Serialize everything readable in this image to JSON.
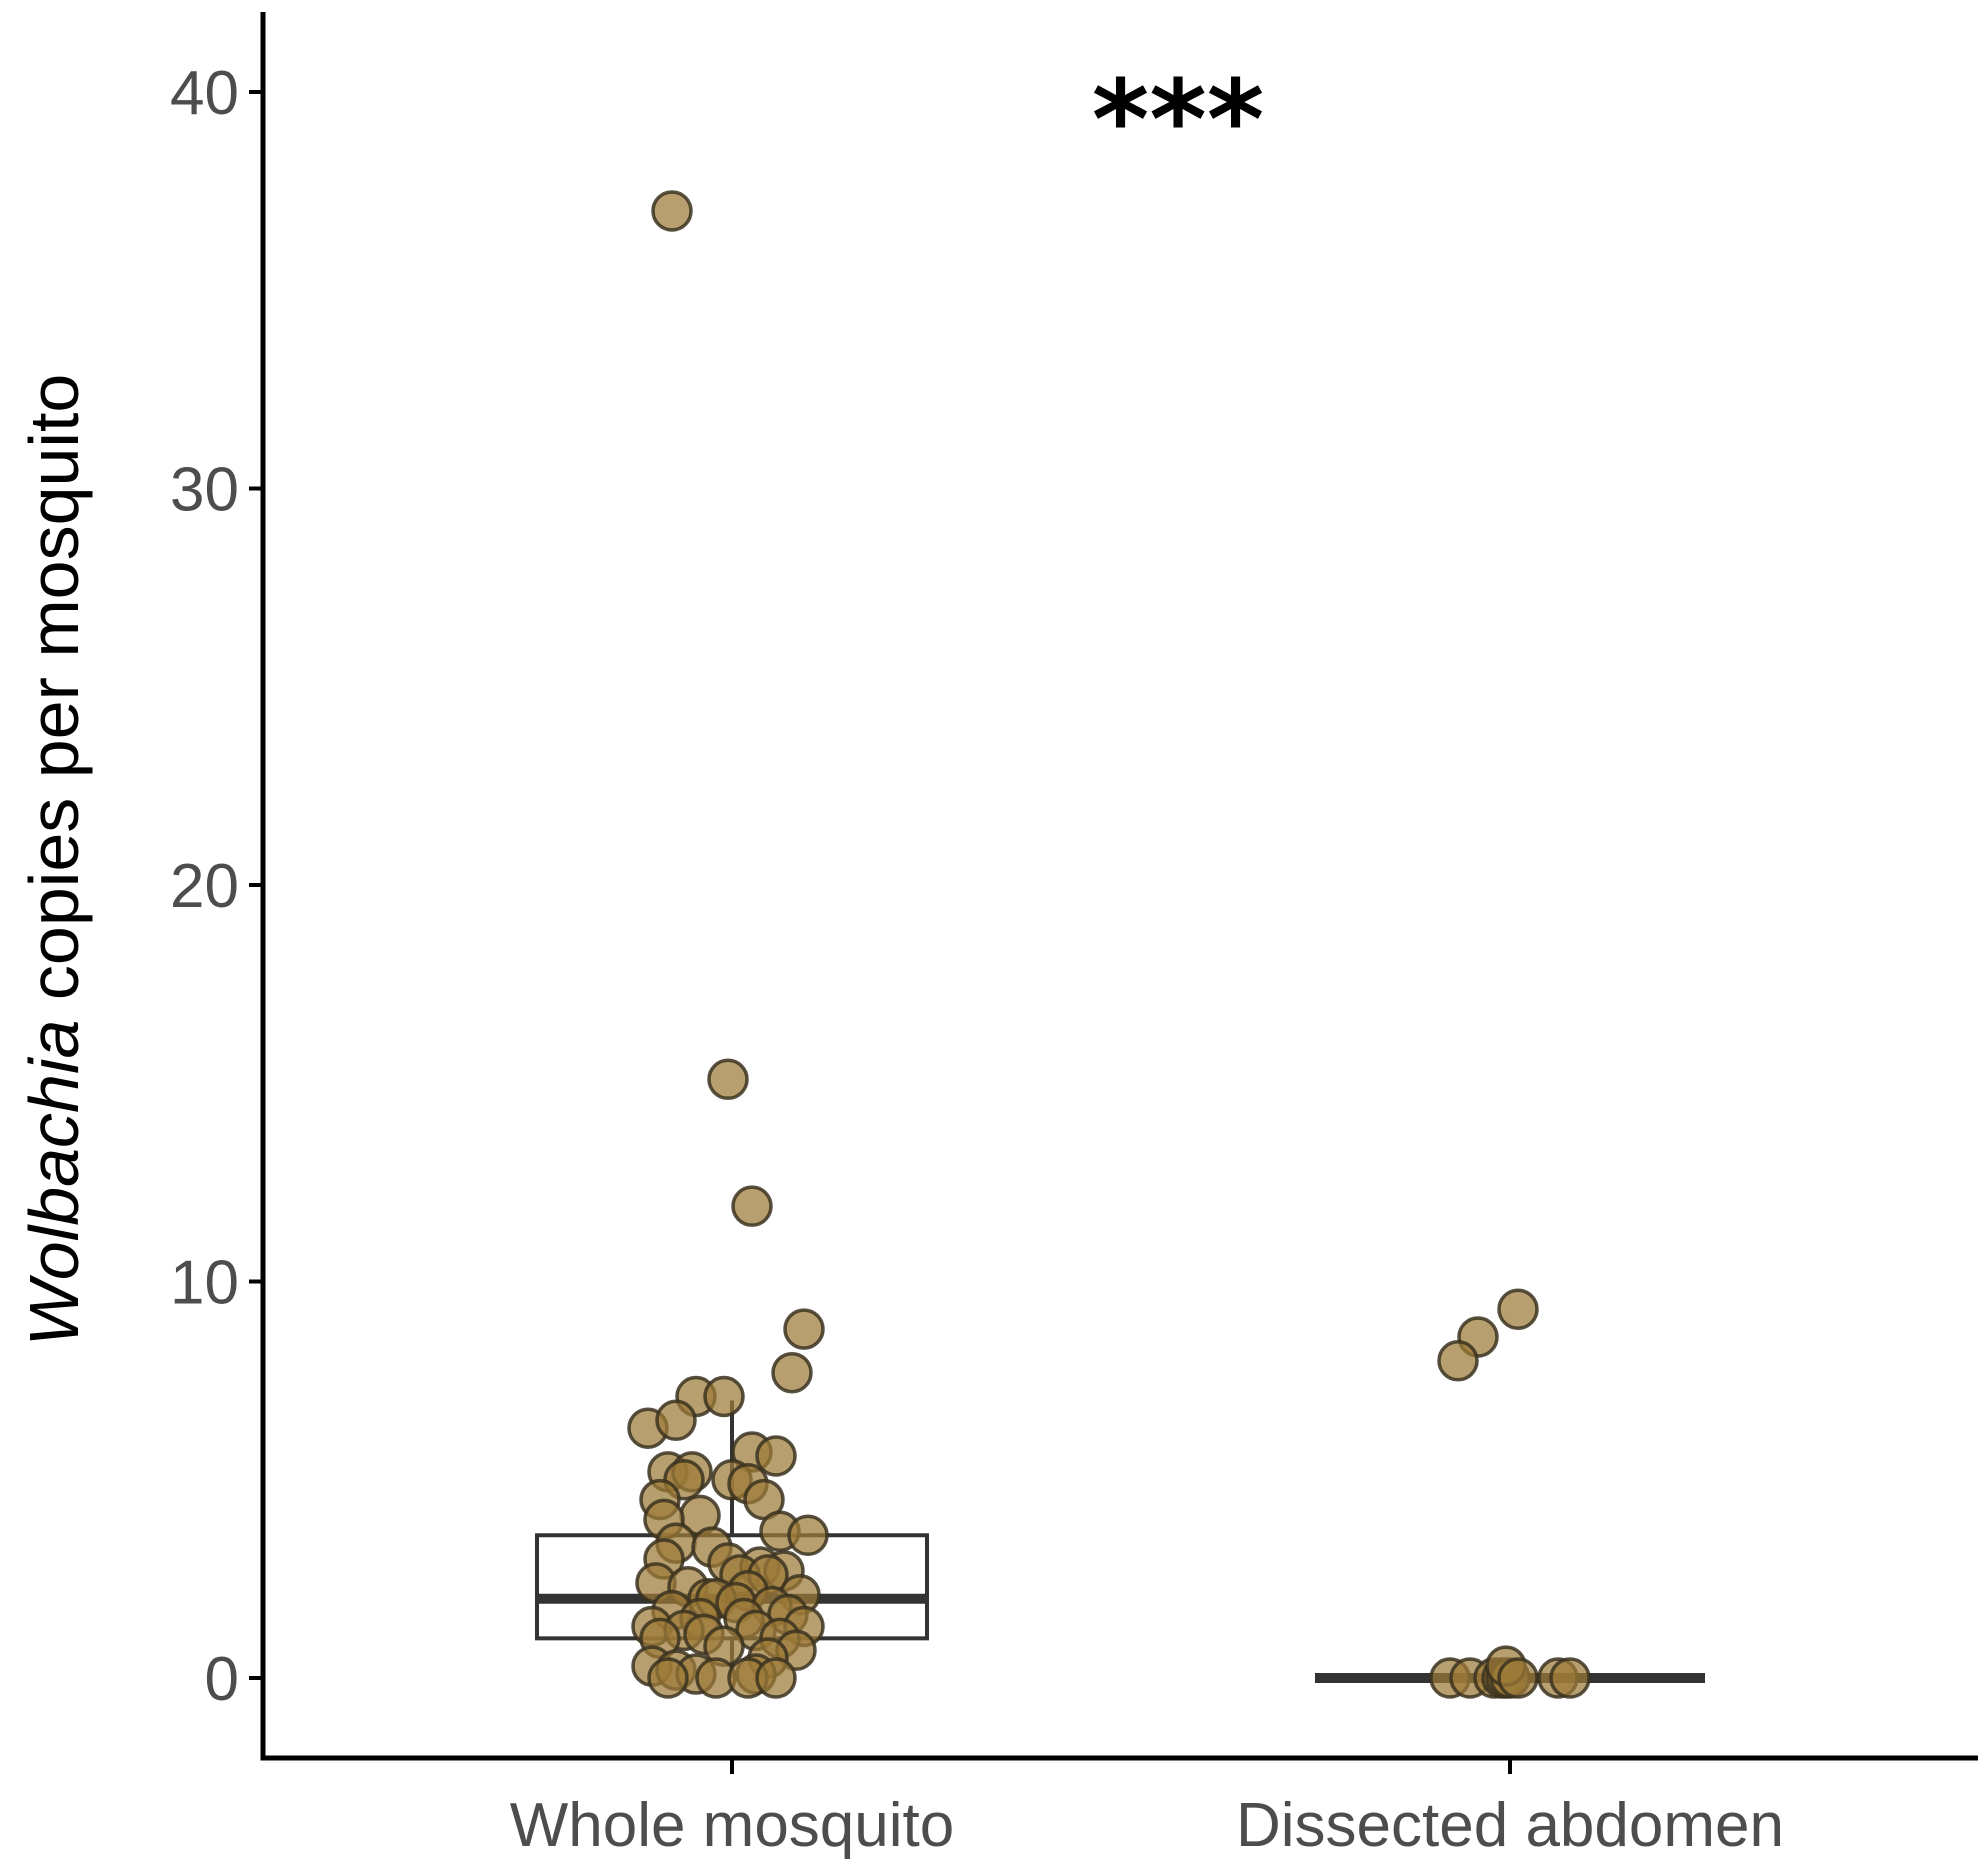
{
  "chart_data": {
    "type": "box",
    "ylabel_italic": "Wolbachia",
    "ylabel_rest": " copies per mosquito",
    "categories": [
      "Whole mosquito",
      "Dissected abdomen"
    ],
    "ylim": [
      -2,
      42
    ],
    "yticks": [
      0,
      10,
      20,
      30,
      40
    ],
    "annotation": "***",
    "point_color": "#9c7a38",
    "point_stroke": "#3b3220",
    "box_color": "#333333",
    "boxes": [
      {
        "category": "Whole mosquito",
        "q1": 1.0,
        "median": 2.0,
        "q3": 3.6,
        "whisker_low": 0,
        "whisker_high": 7.0
      },
      {
        "category": "Dissected abdomen",
        "q1": 0.0,
        "median": 0.0,
        "q3": 0.0,
        "whisker_low": 0,
        "whisker_high": 0
      }
    ],
    "series": [
      {
        "category": "Whole mosquito",
        "points": [
          {
            "j": -0.15,
            "y": 37.0
          },
          {
            "j": -0.01,
            "y": 15.1
          },
          {
            "j": 0.05,
            "y": 11.9
          },
          {
            "j": 0.18,
            "y": 8.8
          },
          {
            "j": 0.15,
            "y": 7.7
          },
          {
            "j": -0.09,
            "y": 7.1
          },
          {
            "j": -0.02,
            "y": 7.1
          },
          {
            "j": -0.21,
            "y": 6.3
          },
          {
            "j": -0.14,
            "y": 6.5
          },
          {
            "j": 0.05,
            "y": 5.7
          },
          {
            "j": 0.11,
            "y": 5.6
          },
          {
            "j": -0.16,
            "y": 5.2
          },
          {
            "j": -0.1,
            "y": 5.2
          },
          {
            "j": -0.12,
            "y": 5.0
          },
          {
            "j": 0.0,
            "y": 5.0
          },
          {
            "j": 0.04,
            "y": 4.9
          },
          {
            "j": -0.18,
            "y": 4.5
          },
          {
            "j": 0.08,
            "y": 4.5
          },
          {
            "j": -0.08,
            "y": 4.1
          },
          {
            "j": -0.17,
            "y": 4.0
          },
          {
            "j": 0.12,
            "y": 3.7
          },
          {
            "j": 0.19,
            "y": 3.6
          },
          {
            "j": -0.14,
            "y": 3.4
          },
          {
            "j": -0.05,
            "y": 3.3
          },
          {
            "j": -0.17,
            "y": 3.0
          },
          {
            "j": -0.01,
            "y": 2.9
          },
          {
            "j": 0.07,
            "y": 2.8
          },
          {
            "j": 0.02,
            "y": 2.6
          },
          {
            "j": 0.13,
            "y": 2.7
          },
          {
            "j": 0.09,
            "y": 2.6
          },
          {
            "j": -0.19,
            "y": 2.4
          },
          {
            "j": -0.11,
            "y": 2.3
          },
          {
            "j": 0.04,
            "y": 2.2
          },
          {
            "j": 0.17,
            "y": 2.1
          },
          {
            "j": -0.06,
            "y": 2.0
          },
          {
            "j": -0.04,
            "y": 2.0
          },
          {
            "j": 0.01,
            "y": 1.9
          },
          {
            "j": 0.1,
            "y": 1.8
          },
          {
            "j": -0.15,
            "y": 1.7
          },
          {
            "j": 0.14,
            "y": 1.6
          },
          {
            "j": -0.08,
            "y": 1.5
          },
          {
            "j": 0.03,
            "y": 1.5
          },
          {
            "j": -0.2,
            "y": 1.3
          },
          {
            "j": 0.18,
            "y": 1.3
          },
          {
            "j": -0.12,
            "y": 1.2
          },
          {
            "j": 0.06,
            "y": 1.2
          },
          {
            "j": -0.07,
            "y": 1.1
          },
          {
            "j": 0.12,
            "y": 1.0
          },
          {
            "j": -0.18,
            "y": 1.0
          },
          {
            "j": 0.16,
            "y": 0.7
          },
          {
            "j": -0.02,
            "y": 0.8
          },
          {
            "j": 0.09,
            "y": 0.5
          },
          {
            "j": -0.2,
            "y": 0.3
          },
          {
            "j": -0.14,
            "y": 0.2
          },
          {
            "j": -0.09,
            "y": 0.1
          },
          {
            "j": 0.06,
            "y": 0.1
          },
          {
            "j": -0.04,
            "y": 0.0
          },
          {
            "j": 0.04,
            "y": 0.0
          },
          {
            "j": 0.11,
            "y": 0.0
          },
          {
            "j": -0.16,
            "y": 0.0
          }
        ]
      },
      {
        "category": "Dissected abdomen",
        "points": [
          {
            "j": 0.02,
            "y": 9.3
          },
          {
            "j": -0.08,
            "y": 8.6
          },
          {
            "j": -0.13,
            "y": 8.0
          },
          {
            "j": -0.15,
            "y": 0.0
          },
          {
            "j": -0.1,
            "y": 0.0
          },
          {
            "j": -0.04,
            "y": 0.0
          },
          {
            "j": -0.02,
            "y": 0.0
          },
          {
            "j": -0.01,
            "y": 0.0
          },
          {
            "j": 0.0,
            "y": 0.0
          },
          {
            "j": -0.01,
            "y": 0.3
          },
          {
            "j": 0.02,
            "y": 0.0
          },
          {
            "j": 0.12,
            "y": 0.0
          },
          {
            "j": 0.15,
            "y": 0.0
          }
        ]
      }
    ]
  }
}
